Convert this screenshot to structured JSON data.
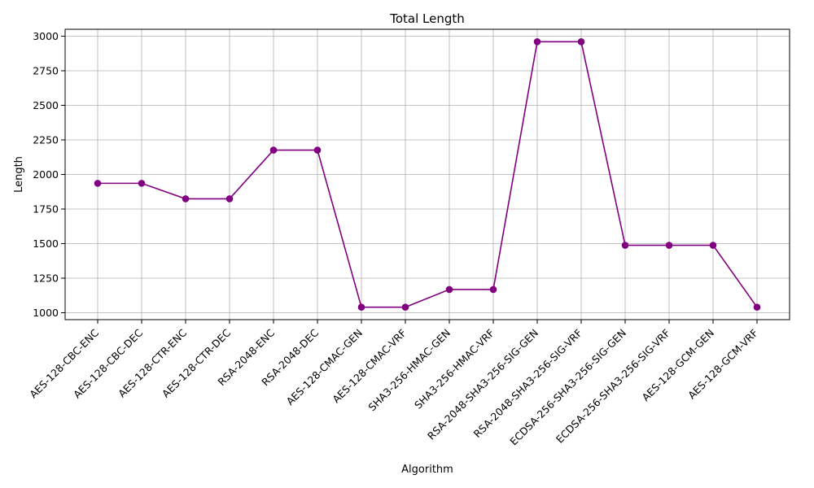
{
  "chart_data": {
    "type": "line",
    "title": "Total Length",
    "xlabel": "Algorithm",
    "ylabel": "Length",
    "categories": [
      "AES-128-CBC-ENC",
      "AES-128-CBC-DEC",
      "AES-128-CTR-ENC",
      "AES-128-CTR-DEC",
      "RSA-2048-ENC",
      "RSA-2048-DEC",
      "AES-128-CMAC-GEN",
      "AES-128-CMAC-VRF",
      "SHA3-256-HMAC-GEN",
      "SHA3-256-HMAC-VRF",
      "RSA-2048-SHA3-256-SIG-GEN",
      "RSA-2048-SHA3-256-SIG-VRF",
      "ECDSA-256-SHA3-256-SIG-GEN",
      "ECDSA-256-SHA3-256-SIG-VRF",
      "AES-128-GCM-GEN",
      "AES-128-GCM-VRF"
    ],
    "values": [
      1936,
      1936,
      1824,
      1824,
      2176,
      2176,
      1040,
      1040,
      1168,
      1168,
      2960,
      2960,
      1488,
      1488,
      1488,
      1040
    ],
    "ylim": [
      950,
      3050
    ],
    "yticks": [
      1000,
      1250,
      1500,
      1750,
      2000,
      2250,
      2500,
      2750,
      3000
    ],
    "grid": true,
    "line_color": "#800080",
    "marker": "circle",
    "xtick_rotation_deg": 45
  }
}
